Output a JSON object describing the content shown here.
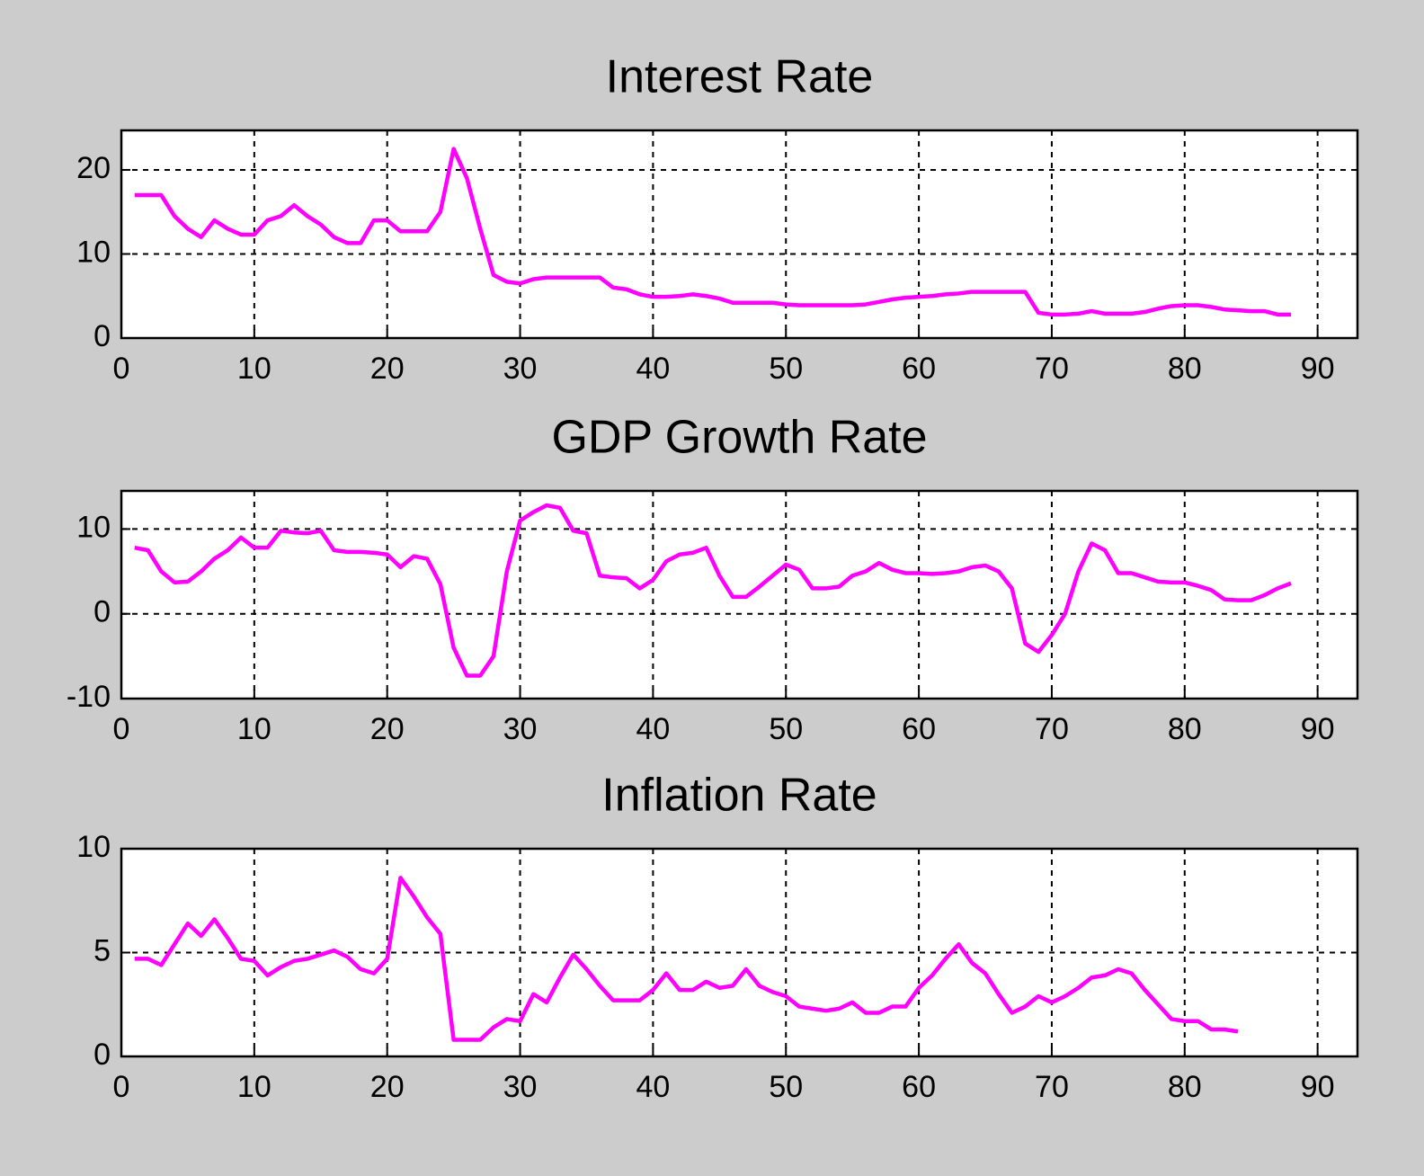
{
  "chart_data": [
    {
      "type": "line",
      "title": "Interest Rate",
      "color": "#ff00ff",
      "grid": true,
      "xlim": [
        0,
        93
      ],
      "xticks": [
        0,
        10,
        20,
        30,
        40,
        50,
        60,
        70,
        80,
        90
      ],
      "ylim": [
        0,
        24.7
      ],
      "yticks": [
        0,
        10,
        20
      ],
      "x": [
        1,
        2,
        3,
        4,
        5,
        6,
        7,
        8,
        9,
        10,
        11,
        12,
        13,
        14,
        15,
        16,
        17,
        18,
        19,
        20,
        21,
        22,
        23,
        24,
        25,
        26,
        27,
        28,
        29,
        30,
        31,
        32,
        33,
        34,
        35,
        36,
        37,
        38,
        39,
        40,
        41,
        42,
        43,
        44,
        45,
        46,
        47,
        48,
        49,
        50,
        51,
        52,
        53,
        54,
        55,
        56,
        57,
        58,
        59,
        60,
        61,
        62,
        63,
        64,
        65,
        66,
        67,
        68,
        69,
        70,
        71,
        72,
        73,
        74,
        75,
        76,
        77,
        78,
        79,
        80,
        81,
        82,
        83,
        84,
        85,
        86,
        87,
        88
      ],
      "values": [
        17,
        17,
        17,
        14.5,
        13,
        12,
        14,
        13,
        12.3,
        12.3,
        14,
        14.5,
        15.8,
        14.5,
        13.5,
        12,
        11.3,
        11.3,
        14,
        14,
        12.7,
        12.7,
        12.7,
        15,
        22.5,
        19,
        13,
        7.5,
        6.7,
        6.5,
        7,
        7.2,
        7.2,
        7.2,
        7.2,
        7.2,
        6,
        5.8,
        5.2,
        4.9,
        4.9,
        5,
        5.2,
        5,
        4.7,
        4.2,
        4.2,
        4.2,
        4.2,
        4,
        3.9,
        3.9,
        3.9,
        3.9,
        3.9,
        4,
        4.3,
        4.6,
        4.8,
        4.9,
        5,
        5.2,
        5.3,
        5.5,
        5.5,
        5.5,
        5.5,
        5.5,
        3,
        2.8,
        2.8,
        2.9,
        3.2,
        2.9,
        2.9,
        2.9,
        3.1,
        3.5,
        3.8,
        3.9,
        3.9,
        3.7,
        3.4,
        3.3,
        3.2,
        3.2,
        2.8,
        2.8
      ]
    },
    {
      "type": "line",
      "title": "GDP Growth Rate",
      "color": "#ff00ff",
      "grid": true,
      "xlim": [
        0,
        93
      ],
      "xticks": [
        0,
        10,
        20,
        30,
        40,
        50,
        60,
        70,
        80,
        90
      ],
      "ylim": [
        -10,
        14.5
      ],
      "yticks": [
        -10,
        0,
        10
      ],
      "x": [
        1,
        2,
        3,
        4,
        5,
        6,
        7,
        8,
        9,
        10,
        11,
        12,
        13,
        14,
        15,
        16,
        17,
        18,
        19,
        20,
        21,
        22,
        23,
        24,
        25,
        26,
        27,
        28,
        29,
        30,
        31,
        32,
        33,
        34,
        35,
        36,
        37,
        38,
        39,
        40,
        41,
        42,
        43,
        44,
        45,
        46,
        47,
        48,
        49,
        50,
        51,
        52,
        53,
        54,
        55,
        56,
        57,
        58,
        59,
        60,
        61,
        62,
        63,
        64,
        65,
        66,
        67,
        68,
        69,
        70,
        71,
        72,
        73,
        74,
        75,
        76,
        77,
        78,
        79,
        80,
        81,
        82,
        83,
        84,
        85,
        86,
        87,
        88
      ],
      "values": [
        7.8,
        7.5,
        5,
        3.7,
        3.8,
        5,
        6.5,
        7.5,
        9,
        7.8,
        7.8,
        9.8,
        9.6,
        9.5,
        9.8,
        7.5,
        7.3,
        7.3,
        7.2,
        7,
        5.5,
        6.8,
        6.5,
        3.5,
        -4,
        -7.3,
        -7.3,
        -5,
        5,
        11,
        12,
        12.8,
        12.5,
        9.8,
        9.5,
        4.5,
        4.3,
        4.2,
        3,
        4,
        6.2,
        7,
        7.2,
        7.8,
        4.5,
        2,
        2,
        3.2,
        4.5,
        5.8,
        5.2,
        3,
        3,
        3.2,
        4.5,
        5,
        6,
        5.2,
        4.8,
        4.8,
        4.7,
        4.8,
        5,
        5.5,
        5.7,
        5,
        3,
        -3.5,
        -4.5,
        -2.5,
        0,
        5,
        8.3,
        7.5,
        4.8,
        4.8,
        4.3,
        3.8,
        3.7,
        3.7,
        3.3,
        2.8,
        1.7,
        1.6,
        1.6,
        2.2,
        3,
        3.6
      ]
    },
    {
      "type": "line",
      "title": "Inflation Rate",
      "color": "#ff00ff",
      "grid": true,
      "xlim": [
        0,
        93
      ],
      "xticks": [
        0,
        10,
        20,
        30,
        40,
        50,
        60,
        70,
        80,
        90
      ],
      "ylim": [
        0,
        10
      ],
      "yticks": [
        0,
        5,
        10
      ],
      "x": [
        1,
        2,
        3,
        4,
        5,
        6,
        7,
        8,
        9,
        10,
        11,
        12,
        13,
        14,
        15,
        16,
        17,
        18,
        19,
        20,
        21,
        22,
        23,
        24,
        25,
        26,
        27,
        28,
        29,
        30,
        31,
        32,
        33,
        34,
        35,
        36,
        37,
        38,
        39,
        40,
        41,
        42,
        43,
        44,
        45,
        46,
        47,
        48,
        49,
        50,
        51,
        52,
        53,
        54,
        55,
        56,
        57,
        58,
        59,
        60,
        61,
        62,
        63,
        64,
        65,
        66,
        67,
        68,
        69,
        70,
        71,
        72,
        73,
        74,
        75,
        76,
        77,
        78,
        79,
        80,
        81,
        82,
        83,
        84
      ],
      "values": [
        4.7,
        4.7,
        4.4,
        5.4,
        6.4,
        5.8,
        6.6,
        5.7,
        4.7,
        4.6,
        3.9,
        4.3,
        4.6,
        4.7,
        4.9,
        5.1,
        4.8,
        4.2,
        4,
        4.7,
        8.6,
        7.7,
        6.7,
        5.9,
        0.8,
        0.8,
        0.8,
        1.4,
        1.8,
        1.7,
        3,
        2.6,
        3.8,
        4.9,
        4.2,
        3.4,
        2.7,
        2.7,
        2.7,
        3.2,
        4,
        3.2,
        3.2,
        3.6,
        3.3,
        3.4,
        4.2,
        3.4,
        3.1,
        2.9,
        2.4,
        2.3,
        2.2,
        2.3,
        2.6,
        2.1,
        2.1,
        2.4,
        2.4,
        3.3,
        3.9,
        4.7,
        5.4,
        4.5,
        4,
        3,
        2.1,
        2.4,
        2.9,
        2.6,
        2.9,
        3.3,
        3.8,
        3.9,
        4.2,
        4,
        3.2,
        2.5,
        1.8,
        1.7,
        1.7,
        1.3,
        1.3,
        1.2
      ]
    }
  ]
}
